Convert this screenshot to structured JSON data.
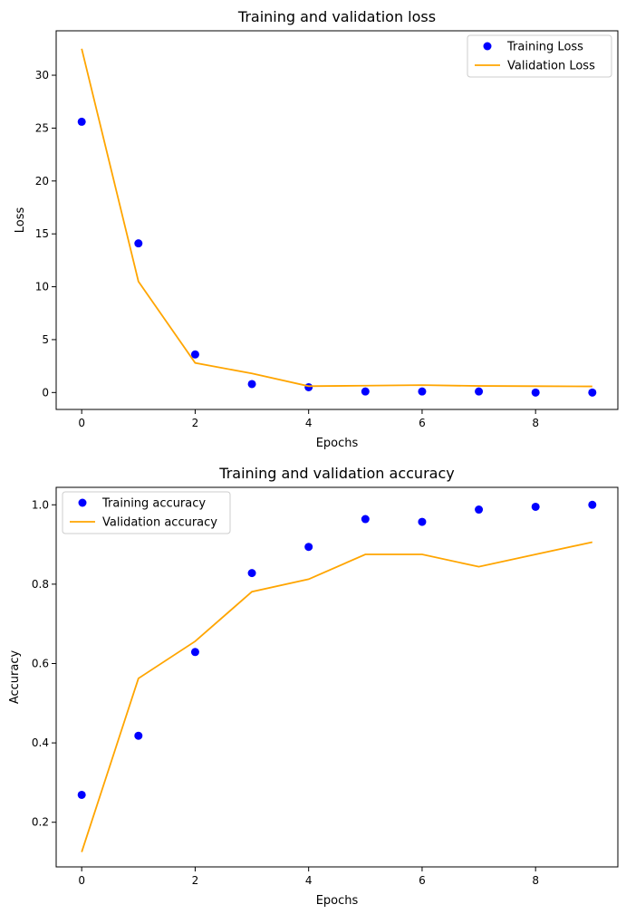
{
  "chart_data": [
    {
      "type": "line",
      "title": "Training and validation loss",
      "xlabel": "Epochs",
      "ylabel": "Loss",
      "xlim": [
        -0.45,
        9.45
      ],
      "ylim": [
        -1.6,
        34.2
      ],
      "xticks": [
        0,
        2,
        4,
        6,
        8
      ],
      "yticks": [
        0,
        5,
        10,
        15,
        20,
        25,
        30
      ],
      "grid": false,
      "legend_position": "upper right",
      "x": [
        0,
        1,
        2,
        3,
        4,
        5,
        6,
        7,
        8,
        9
      ],
      "series": [
        {
          "name": "Training Loss",
          "style": "points",
          "color": "#0000ff",
          "values": [
            25.6,
            14.1,
            3.6,
            0.8,
            0.5,
            0.1,
            0.1,
            0.1,
            0.0,
            0.0
          ]
        },
        {
          "name": "Validation Loss",
          "style": "line",
          "color": "#ffa500",
          "values": [
            32.5,
            10.5,
            2.8,
            1.8,
            0.6,
            0.65,
            0.7,
            0.62,
            0.6,
            0.58
          ]
        }
      ]
    },
    {
      "type": "line",
      "title": "Training and validation accuracy",
      "xlabel": "Epochs",
      "ylabel": "Accuracy",
      "xlim": [
        -0.45,
        9.45
      ],
      "ylim": [
        0.0875,
        1.044
      ],
      "xticks": [
        0,
        2,
        4,
        6,
        8
      ],
      "yticks": [
        0.2,
        0.4,
        0.6,
        0.8,
        1.0
      ],
      "grid": false,
      "legend_position": "upper left",
      "x": [
        0,
        1,
        2,
        3,
        4,
        5,
        6,
        7,
        8,
        9
      ],
      "series": [
        {
          "name": "Training accuracy",
          "style": "points",
          "color": "#0000ff",
          "values": [
            0.269,
            0.418,
            0.629,
            0.828,
            0.894,
            0.964,
            0.957,
            0.988,
            0.995,
            1.0
          ]
        },
        {
          "name": "Validation accuracy",
          "style": "line",
          "color": "#ffa500",
          "values": [
            0.125,
            0.5625,
            0.656,
            0.781,
            0.8125,
            0.875,
            0.875,
            0.844,
            0.875,
            0.906
          ]
        }
      ]
    }
  ]
}
